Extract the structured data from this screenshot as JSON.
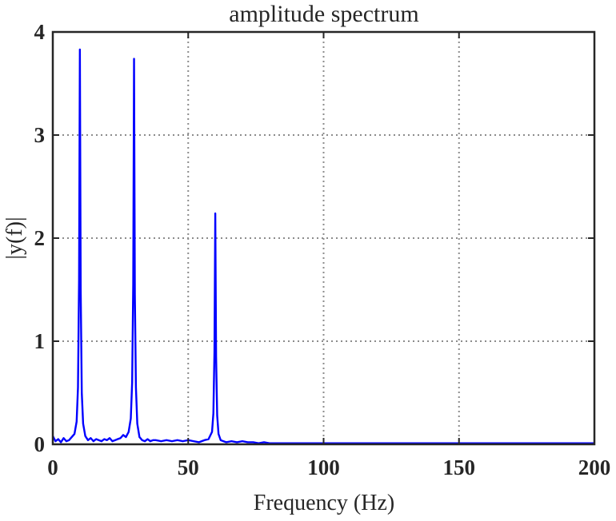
{
  "chart_data": {
    "type": "line",
    "title": "amplitude spectrum",
    "xlabel": "Frequency (Hz)",
    "ylabel": "|y(f)|",
    "xlim": [
      0,
      200
    ],
    "ylim": [
      0,
      4
    ],
    "xticks": [
      0,
      50,
      100,
      150,
      200
    ],
    "yticks": [
      0,
      1,
      2,
      3,
      4
    ],
    "xtick_labels": [
      "0",
      "50",
      "100",
      "150",
      "200"
    ],
    "ytick_labels": [
      "0",
      "1",
      "2",
      "3",
      "4"
    ],
    "grid": true,
    "series": [
      {
        "color": "#0000ff",
        "x": [
          0,
          1,
          2,
          3,
          4,
          5,
          6,
          7,
          8,
          8.8,
          9.3,
          9.7,
          10,
          10.3,
          10.7,
          11.2,
          12,
          13,
          14,
          15,
          16,
          17,
          18,
          19,
          20,
          21,
          22,
          23,
          24,
          25,
          26,
          27,
          28,
          28.8,
          29.3,
          29.7,
          30,
          30.3,
          30.7,
          31.2,
          32,
          33,
          34,
          35,
          36,
          37,
          38,
          40,
          42,
          44,
          46,
          48,
          50,
          52,
          54,
          56,
          57.5,
          58.8,
          59.3,
          59.7,
          60,
          60.3,
          60.7,
          61.2,
          62,
          63,
          64,
          66,
          68,
          70,
          72,
          74,
          76,
          78,
          80,
          85,
          90,
          100,
          120,
          140,
          160,
          180,
          200
        ],
        "y": [
          0.08,
          0.03,
          0.05,
          0.02,
          0.06,
          0.03,
          0.04,
          0.07,
          0.1,
          0.22,
          0.55,
          1.6,
          3.83,
          1.5,
          0.5,
          0.2,
          0.08,
          0.04,
          0.06,
          0.03,
          0.05,
          0.04,
          0.03,
          0.05,
          0.04,
          0.06,
          0.03,
          0.04,
          0.05,
          0.06,
          0.09,
          0.07,
          0.12,
          0.25,
          0.6,
          1.55,
          3.74,
          1.45,
          0.55,
          0.2,
          0.07,
          0.04,
          0.03,
          0.05,
          0.03,
          0.04,
          0.04,
          0.03,
          0.04,
          0.03,
          0.04,
          0.03,
          0.04,
          0.03,
          0.02,
          0.04,
          0.05,
          0.12,
          0.3,
          0.9,
          2.24,
          0.85,
          0.28,
          0.1,
          0.04,
          0.03,
          0.02,
          0.03,
          0.02,
          0.03,
          0.02,
          0.02,
          0.01,
          0.02,
          0.01,
          0.01,
          0.01,
          0.01,
          0.01,
          0.01,
          0.01,
          0.01,
          0.01
        ]
      }
    ]
  }
}
